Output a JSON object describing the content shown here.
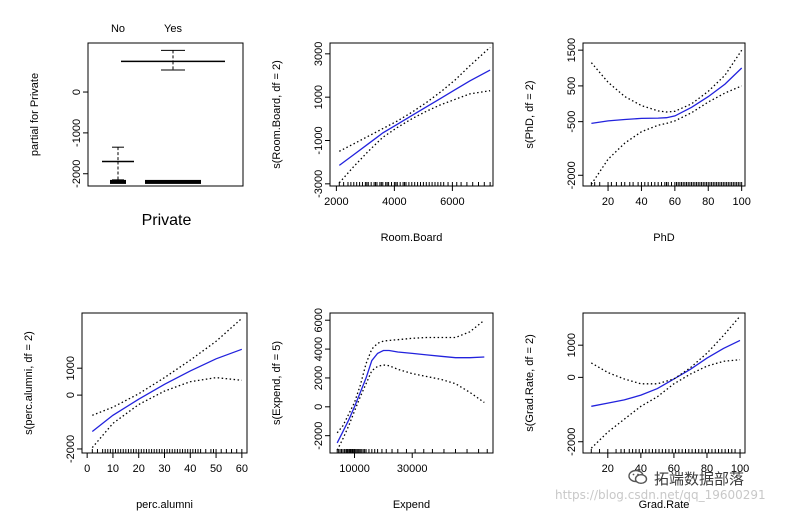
{
  "chart_data": [
    {
      "type": "boxplot",
      "title": "",
      "xlabel": "Private",
      "ylabel": "partial for Private",
      "ylim": [
        -2300,
        1200
      ],
      "yticks": [
        0,
        -1000,
        -2000
      ],
      "categories": [
        "No",
        "Yes"
      ],
      "boxes": [
        {
          "category": "No",
          "center": -1700,
          "whisker_high": -1350,
          "whisker_low": -2150,
          "rug": -2200
        },
        {
          "category": "Yes",
          "center": 750,
          "whisker_high": 1020,
          "whisker_low": 540,
          "rug": -2200
        }
      ]
    },
    {
      "type": "line",
      "xlabel": "Room.Board",
      "ylabel": "s(Room.Board, df = 2)",
      "xlim": [
        1780,
        7400
      ],
      "ylim": [
        -3100,
        3500
      ],
      "xticks": [
        2000,
        4000,
        6000
      ],
      "yticks": [
        -3000,
        -1000,
        1000,
        3000
      ],
      "series": [
        {
          "role": "fit",
          "x": [
            2100,
            2600,
            3100,
            3600,
            4100,
            4600,
            5100,
            5600,
            6100,
            6600,
            7300
          ],
          "y": [
            -2150,
            -1650,
            -1150,
            -650,
            -250,
            150,
            550,
            950,
            1350,
            1750,
            2250
          ]
        },
        {
          "role": "upper",
          "x": [
            2100,
            2600,
            3100,
            3600,
            4100,
            4600,
            5100,
            5600,
            6100,
            6600,
            7300
          ],
          "y": [
            -1500,
            -1150,
            -800,
            -450,
            -100,
            300,
            750,
            1250,
            1800,
            2450,
            3300
          ]
        },
        {
          "role": "lower",
          "x": [
            2100,
            2600,
            3100,
            3600,
            4100,
            4600,
            5100,
            5600,
            6100,
            6600,
            7300
          ],
          "y": [
            -2950,
            -2200,
            -1500,
            -850,
            -400,
            0,
            350,
            650,
            900,
            1150,
            1300
          ]
        }
      ],
      "rug": [
        2100,
        2250,
        2400,
        2500,
        2600,
        2700,
        2800,
        2900,
        3000,
        3050,
        3100,
        3200,
        3300,
        3350,
        3400,
        3500,
        3550,
        3600,
        3700,
        3750,
        3800,
        3900,
        4000,
        4050,
        4100,
        4200,
        4300,
        4350,
        4400,
        4500,
        4600,
        4700,
        4800,
        4900,
        5000,
        5100,
        5200,
        5300,
        5400,
        5500,
        5600,
        5700,
        5850,
        6000,
        6150,
        6300,
        6500,
        6700,
        6900,
        7100,
        7300
      ]
    },
    {
      "type": "line",
      "xlabel": "PhD",
      "ylabel": "s(PhD, df = 2)",
      "xlim": [
        5,
        102
      ],
      "ylim": [
        -2300,
        1700
      ],
      "xticks": [
        20,
        40,
        60,
        80,
        100
      ],
      "yticks": [
        -2000,
        -500,
        500,
        1500
      ],
      "series": [
        {
          "role": "fit",
          "x": [
            10,
            20,
            30,
            40,
            50,
            55,
            60,
            70,
            80,
            90,
            100
          ],
          "y": [
            -550,
            -480,
            -440,
            -410,
            -400,
            -390,
            -340,
            -100,
            200,
            550,
            1000
          ]
        },
        {
          "role": "upper",
          "x": [
            10,
            20,
            30,
            40,
            50,
            55,
            60,
            70,
            80,
            90,
            100
          ],
          "y": [
            1150,
            600,
            200,
            -50,
            -200,
            -230,
            -210,
            0,
            350,
            800,
            1500
          ]
        },
        {
          "role": "lower",
          "x": [
            10,
            20,
            30,
            40,
            50,
            55,
            60,
            70,
            80,
            90,
            100
          ],
          "y": [
            -2250,
            -1550,
            -1100,
            -780,
            -600,
            -550,
            -480,
            -250,
            50,
            300,
            500
          ]
        }
      ],
      "rug": [
        10,
        12,
        15,
        20,
        22,
        25,
        28,
        30,
        33,
        35,
        38,
        40,
        42,
        44,
        46,
        48,
        50,
        52,
        54,
        55,
        56,
        58,
        60,
        61,
        62,
        63,
        64,
        65,
        66,
        67,
        68,
        69,
        70,
        71,
        72,
        73,
        74,
        75,
        76,
        77,
        78,
        79,
        80,
        81,
        82,
        83,
        84,
        85,
        86,
        87,
        88,
        89,
        90,
        91,
        92,
        93,
        94,
        95,
        96,
        97,
        98,
        99,
        100
      ]
    },
    {
      "type": "line",
      "xlabel": "perc.alumni",
      "ylabel": "s(perc.alumni, df = 2)",
      "xlim": [
        -2,
        62
      ],
      "ylim": [
        -2150,
        3050
      ],
      "xticks": [
        0,
        10,
        20,
        30,
        40,
        50,
        60
      ],
      "yticks": [
        -2000,
        0,
        1000
      ],
      "series": [
        {
          "role": "fit",
          "x": [
            2,
            10,
            20,
            30,
            40,
            50,
            60
          ],
          "y": [
            -1350,
            -750,
            -150,
            400,
            900,
            1350,
            1700
          ]
        },
        {
          "role": "upper",
          "x": [
            2,
            10,
            20,
            30,
            40,
            50,
            60
          ],
          "y": [
            -750,
            -450,
            50,
            650,
            1300,
            2000,
            2850
          ]
        },
        {
          "role": "lower",
          "x": [
            2,
            10,
            20,
            30,
            40,
            50,
            60
          ],
          "y": [
            -1950,
            -1050,
            -350,
            150,
            500,
            650,
            550
          ]
        }
      ],
      "rug": [
        2,
        4,
        6,
        7,
        8,
        9,
        10,
        11,
        12,
        13,
        14,
        15,
        16,
        17,
        18,
        19,
        20,
        21,
        22,
        23,
        24,
        25,
        26,
        27,
        28,
        29,
        30,
        31,
        32,
        33,
        34,
        35,
        36,
        37,
        38,
        39,
        40,
        41,
        42,
        43,
        44,
        46,
        48,
        49,
        50,
        52,
        54,
        56,
        58,
        60
      ]
    },
    {
      "type": "line",
      "xlabel": "Expend",
      "ylabel": "s(Expend, df = 5)",
      "xlim": [
        1500,
        58000
      ],
      "ylim": [
        -3200,
        6500
      ],
      "xticks": [
        10000,
        30000
      ],
      "yticks": [
        -2000,
        0,
        2000,
        4000,
        6000
      ],
      "series": [
        {
          "role": "fit",
          "x": [
            4000,
            6000,
            8000,
            10000,
            12000,
            14000,
            16000,
            18000,
            20000,
            22000,
            25000,
            30000,
            35000,
            40000,
            45000,
            50000,
            55000
          ],
          "y": [
            -2500,
            -1700,
            -900,
            0,
            1000,
            2000,
            3200,
            3700,
            3900,
            3900,
            3800,
            3700,
            3600,
            3500,
            3400,
            3400,
            3450
          ]
        },
        {
          "role": "upper",
          "x": [
            4000,
            6000,
            8000,
            10000,
            12000,
            14000,
            16000,
            18000,
            20000,
            22000,
            25000,
            30000,
            35000,
            40000,
            45000,
            50000,
            55000
          ],
          "y": [
            -1800,
            -1300,
            -500,
            300,
            1500,
            3000,
            4000,
            4400,
            4550,
            4600,
            4650,
            4750,
            4800,
            4800,
            4800,
            5200,
            6000
          ]
        },
        {
          "role": "lower",
          "x": [
            4000,
            6000,
            8000,
            10000,
            12000,
            14000,
            16000,
            18000,
            20000,
            22000,
            25000,
            30000,
            35000,
            40000,
            45000,
            50000,
            55000
          ],
          "y": [
            -3000,
            -2200,
            -1300,
            -300,
            700,
            1600,
            2500,
            2800,
            2900,
            2850,
            2600,
            2300,
            2100,
            1900,
            1600,
            1000,
            300
          ]
        }
      ],
      "rug": [
        4000,
        4500,
        5000,
        5500,
        6000,
        6500,
        7000,
        7300,
        7600,
        8000,
        8300,
        8600,
        9000,
        9300,
        9600,
        10000,
        10400,
        10800,
        11200,
        11600,
        12000,
        12500,
        13000,
        13500,
        14000,
        15000,
        16000,
        17000,
        18000,
        19500,
        21000,
        23000,
        25000,
        28000,
        31000,
        34000,
        37000,
        41000,
        45000,
        49000,
        53000,
        56000
      ]
    },
    {
      "type": "line",
      "xlabel": "Grad.Rate",
      "ylabel": "s(Grad.Rate, df = 2)",
      "xlim": [
        5,
        103
      ],
      "ylim": [
        -2350,
        2000
      ],
      "xticks": [
        20,
        40,
        60,
        80,
        100
      ],
      "yticks": [
        -2000,
        0,
        1000
      ],
      "series": [
        {
          "role": "fit",
          "x": [
            10,
            20,
            30,
            40,
            50,
            60,
            70,
            80,
            90,
            100
          ],
          "y": [
            -900,
            -800,
            -700,
            -550,
            -350,
            -50,
            250,
            600,
            900,
            1150
          ]
        },
        {
          "role": "upper",
          "x": [
            10,
            20,
            30,
            40,
            50,
            60,
            70,
            80,
            90,
            100
          ],
          "y": [
            450,
            150,
            -50,
            -200,
            -200,
            -50,
            300,
            750,
            1300,
            1900
          ]
        },
        {
          "role": "lower",
          "x": [
            10,
            20,
            30,
            40,
            50,
            60,
            70,
            80,
            90,
            100
          ],
          "y": [
            -2200,
            -1700,
            -1300,
            -900,
            -600,
            -200,
            100,
            350,
            500,
            550
          ]
        }
      ],
      "rug": [
        10,
        15,
        20,
        25,
        28,
        30,
        33,
        35,
        37,
        39,
        41,
        43,
        45,
        47,
        49,
        51,
        53,
        55,
        57,
        59,
        61,
        63,
        65,
        67,
        69,
        71,
        73,
        75,
        77,
        79,
        81,
        83,
        85,
        87,
        89,
        91,
        93,
        95,
        97,
        100
      ]
    }
  ],
  "colors": {
    "fit": "#2222dd",
    "band": "#000000",
    "axis": "#000000"
  },
  "watermark": {
    "brand": "拓端数据部落",
    "url": "https://blog.csdn.net/qq_19600291"
  }
}
